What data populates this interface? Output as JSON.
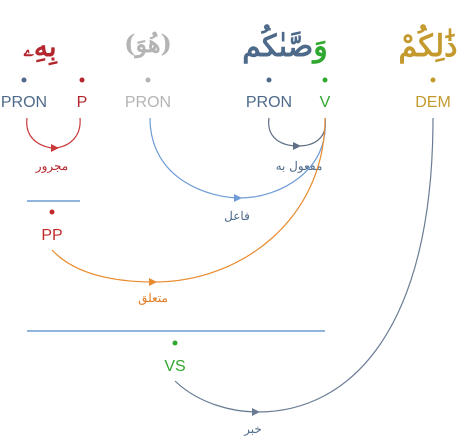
{
  "colors": {
    "p": "#b3262e",
    "pron": "#4e6a8a",
    "hidden": "#b4b4b4",
    "verb": "#2fa82f",
    "dem": "#c49a2e",
    "pp": "#c22a2a",
    "vs": "#2fa82f",
    "arc_gen": "#c93a3a",
    "arc_subj": "#6f9cd6",
    "arc_obj": "#5f6f86",
    "arc_link": "#e88a2e",
    "arc_pred": "#6a7c94"
  },
  "words": {
    "w1": "بِهِۦ",
    "w2": "(هُوَ)",
    "w3_prefix": "وَ",
    "w3_stem": "صَّىٰكُم",
    "w4": "ذَٰلِكُمْ"
  },
  "tags": {
    "pron1": "PRON",
    "p": "P",
    "pron2": "PRON",
    "pron3": "PRON",
    "v": "V",
    "dem": "DEM"
  },
  "phrases": {
    "pp": "PP",
    "vs": "VS"
  },
  "relations": {
    "majrur": "مجرور",
    "faail": "فاعل",
    "mafool": "مفعول به",
    "mutaalliq": "متعلق",
    "khabar": "خبر"
  }
}
